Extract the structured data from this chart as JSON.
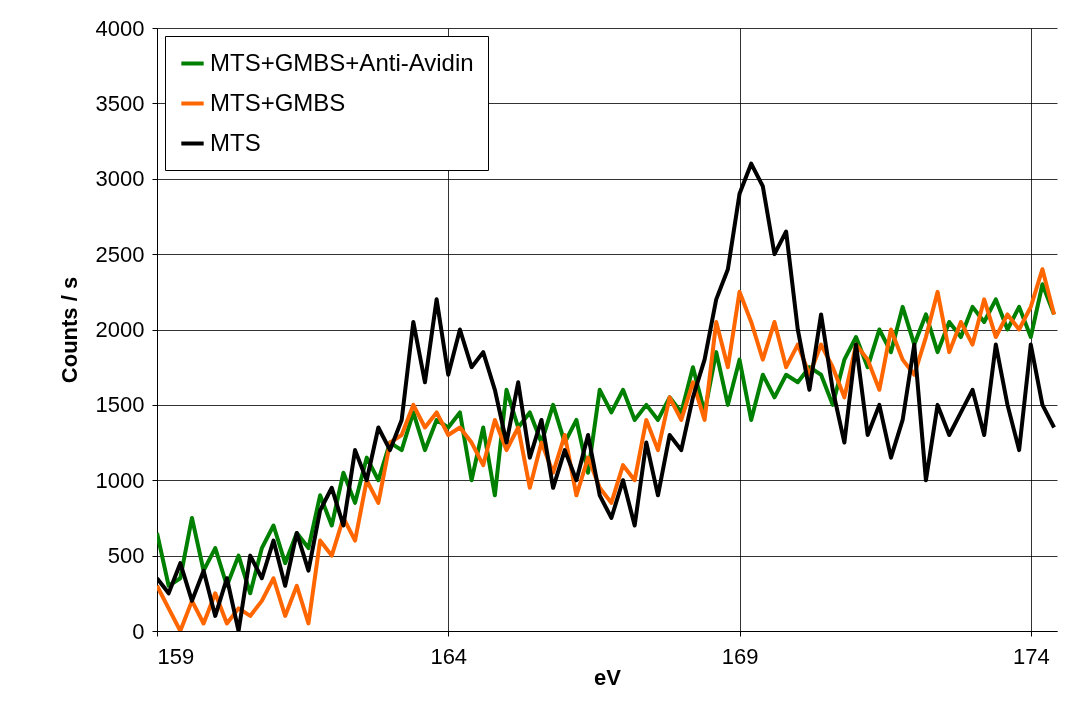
{
  "chart_data": {
    "type": "line",
    "xlabel": "eV",
    "ylabel": "Counts / s",
    "xlim": [
      159,
      174.45
    ],
    "xticks": [
      159,
      164,
      169,
      174
    ],
    "ylim": [
      0,
      4000
    ],
    "yticks": [
      0,
      500,
      1000,
      1500,
      2000,
      2500,
      3000,
      3500,
      4000
    ],
    "grid": true,
    "legend": "top left",
    "marker": "none",
    "line_style": "solid",
    "x": [
      159.0,
      159.2,
      159.4,
      159.6,
      159.8,
      160.0,
      160.2,
      160.4,
      160.6,
      160.8,
      161.0,
      161.2,
      161.4,
      161.6,
      161.8,
      162.0,
      162.2,
      162.4,
      162.6,
      162.8,
      163.0,
      163.2,
      163.4,
      163.6,
      163.8,
      164.0,
      164.2,
      164.4,
      164.6,
      164.8,
      165.0,
      165.2,
      165.4,
      165.6,
      165.8,
      166.0,
      166.2,
      166.4,
      166.6,
      166.8,
      167.0,
      167.2,
      167.4,
      167.6,
      167.8,
      168.0,
      168.2,
      168.4,
      168.6,
      168.8,
      169.0,
      169.2,
      169.4,
      169.6,
      169.8,
      170.0,
      170.2,
      170.4,
      170.6,
      170.8,
      171.0,
      171.2,
      171.4,
      171.6,
      171.8,
      172.0,
      172.2,
      172.4,
      172.6,
      172.8,
      173.0,
      173.2,
      173.4,
      173.6,
      173.8,
      174.0,
      174.2,
      174.4
    ],
    "series": [
      {
        "name": "MTS+GMBS+Anti-Avidin",
        "color": "#008000",
        "values": [
          650,
          300,
          350,
          750,
          400,
          550,
          300,
          500,
          250,
          550,
          700,
          450,
          650,
          550,
          900,
          700,
          1050,
          850,
          1150,
          1000,
          1250,
          1200,
          1450,
          1200,
          1400,
          1350,
          1450,
          1000,
          1350,
          900,
          1600,
          1350,
          1450,
          1250,
          1500,
          1250,
          1400,
          1050,
          1600,
          1450,
          1600,
          1400,
          1500,
          1400,
          1550,
          1450,
          1750,
          1450,
          1850,
          1500,
          1800,
          1400,
          1700,
          1550,
          1700,
          1650,
          1750,
          1700,
          1500,
          1800,
          1950,
          1750,
          2000,
          1850,
          2150,
          1900,
          2100,
          1850,
          2050,
          1950,
          2150,
          2050,
          2200,
          2000,
          2150,
          1950,
          2300,
          2100
        ]
      },
      {
        "name": "MTS+GMBS",
        "color": "#ff6600",
        "values": [
          300,
          150,
          0,
          200,
          50,
          250,
          50,
          150,
          100,
          200,
          350,
          100,
          300,
          50,
          600,
          500,
          750,
          600,
          1000,
          850,
          1250,
          1300,
          1500,
          1350,
          1450,
          1300,
          1350,
          1250,
          1100,
          1400,
          1200,
          1350,
          950,
          1250,
          1050,
          1300,
          900,
          1150,
          950,
          850,
          1100,
          1000,
          1400,
          1200,
          1550,
          1400,
          1650,
          1400,
          2050,
          1750,
          2250,
          2050,
          1800,
          2050,
          1750,
          1900,
          1700,
          1900,
          1750,
          1550,
          1900,
          1800,
          1600,
          2000,
          1800,
          1700,
          1950,
          2250,
          1850,
          2050,
          1900,
          2200,
          1950,
          2100,
          2000,
          2150,
          2400,
          2100
        ]
      },
      {
        "name": "MTS",
        "color": "#000000",
        "values": [
          350,
          250,
          450,
          200,
          400,
          100,
          350,
          0,
          500,
          350,
          600,
          300,
          650,
          400,
          800,
          950,
          700,
          1200,
          1000,
          1350,
          1200,
          1400,
          2050,
          1650,
          2200,
          1700,
          2000,
          1750,
          1850,
          1600,
          1250,
          1650,
          1150,
          1400,
          950,
          1200,
          1000,
          1300,
          900,
          750,
          1000,
          700,
          1250,
          900,
          1300,
          1200,
          1550,
          1800,
          2200,
          2400,
          2900,
          3100,
          2950,
          2500,
          2650,
          2000,
          1600,
          2100,
          1600,
          1250,
          1900,
          1300,
          1500,
          1150,
          1400,
          1900,
          1000,
          1500,
          1300,
          1450,
          1600,
          1300,
          1900,
          1500,
          1200,
          1900,
          1500,
          1350
        ]
      }
    ]
  }
}
